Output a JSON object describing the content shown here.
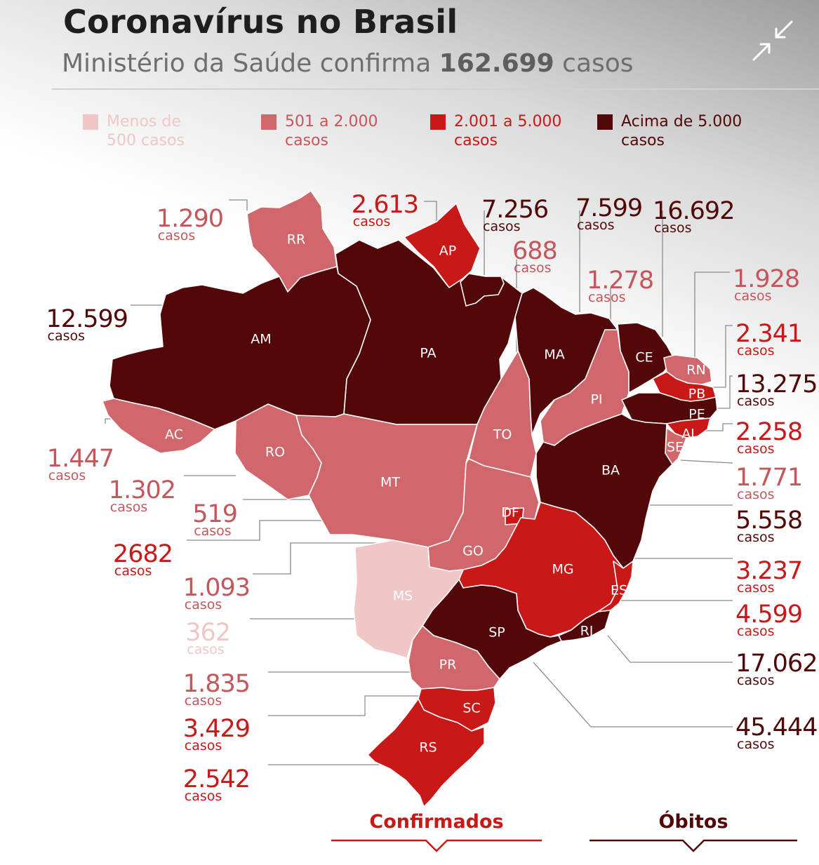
{
  "header": {
    "title": "Coronavírus no Brasil",
    "subtitle_prefix": "Ministério da Saúde confirma ",
    "subtitle_value": "162.699",
    "subtitle_suffix": " casos"
  },
  "legend": [
    {
      "label": "Menos de 500 casos",
      "color": "#f0c6c6",
      "text_color": "#f0c6c6"
    },
    {
      "label": "501 a 2.000 casos",
      "color": "#d0676c",
      "text_color": "#c4565c"
    },
    {
      "label": "2.001 a 5.000 casos",
      "color": "#c81818",
      "text_color": "#c81818"
    },
    {
      "label": "Acima de 5.000 casos",
      "color": "#520808",
      "text_color": "#520808"
    }
  ],
  "unit": "casos",
  "states": [
    {
      "code": "AM",
      "cases": "12.599",
      "tier": 3
    },
    {
      "code": "RR",
      "cases": "1.290",
      "tier": 1
    },
    {
      "code": "AP",
      "cases": "2.613",
      "tier": 2
    },
    {
      "code": "PA",
      "cases": "7.256",
      "tier": 3
    },
    {
      "code": "TO",
      "cases": "688",
      "tier": 1
    },
    {
      "code": "MA",
      "cases": "7.599",
      "tier": 3
    },
    {
      "code": "CE",
      "cases": "16.692",
      "tier": 3
    },
    {
      "code": "PI",
      "cases": "1.278",
      "tier": 1
    },
    {
      "code": "RN",
      "cases": "1.928",
      "tier": 1
    },
    {
      "code": "PB",
      "cases": "2.341",
      "tier": 2
    },
    {
      "code": "PE",
      "cases": "13.275",
      "tier": 3
    },
    {
      "code": "AL",
      "cases": "2.258",
      "tier": 2
    },
    {
      "code": "SE",
      "cases": "1.771",
      "tier": 1
    },
    {
      "code": "BA",
      "cases": "5.558",
      "tier": 3
    },
    {
      "code": "MG",
      "cases": "3.237",
      "tier": 2
    },
    {
      "code": "ES",
      "cases": "4.599",
      "tier": 2
    },
    {
      "code": "RJ",
      "cases": "17.062",
      "tier": 3
    },
    {
      "code": "SP",
      "cases": "45.444",
      "tier": 3
    },
    {
      "code": "AC",
      "cases": "1.447",
      "tier": 1
    },
    {
      "code": "RO",
      "cases": "1.302",
      "tier": 1
    },
    {
      "code": "MT",
      "cases": "519",
      "tier": 1
    },
    {
      "code": "DF",
      "cases": "2682",
      "tier": 2
    },
    {
      "code": "GO",
      "cases": "1.093",
      "tier": 1
    },
    {
      "code": "MS",
      "cases": "362",
      "tier": 0
    },
    {
      "code": "PR",
      "cases": "1.835",
      "tier": 1
    },
    {
      "code": "SC",
      "cases": "3.429",
      "tier": 2
    },
    {
      "code": "RS",
      "cases": "2.542",
      "tier": 2
    }
  ],
  "tabs": {
    "confirmed": "Confirmados",
    "deaths": "Óbitos"
  }
}
